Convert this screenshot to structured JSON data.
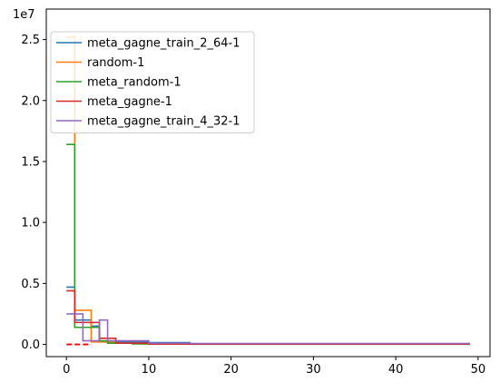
{
  "chart_data": {
    "type": "line",
    "title": "",
    "xlabel": "",
    "ylabel": "",
    "offset_label": "1e7",
    "xlim": [
      -2.45,
      51.45
    ],
    "ylim": [
      -1000000,
      27500000
    ],
    "x_ticks": [
      0,
      10,
      20,
      30,
      40,
      50
    ],
    "x_tick_labels": [
      "0",
      "10",
      "20",
      "30",
      "40",
      "50"
    ],
    "y_ticks": [
      0,
      5000000,
      10000000,
      15000000,
      20000000,
      25000000
    ],
    "y_tick_labels": [
      "0.0",
      "0.5",
      "1.0",
      "1.5",
      "2.0",
      "2.5"
    ],
    "grid": false,
    "legend_position": "top-left",
    "step": true,
    "series": [
      {
        "name": "meta_gagne_train_2_64-1",
        "color": "#1f77b4",
        "points": [
          [
            0,
            4700000
          ],
          [
            1,
            2000000
          ],
          [
            2,
            2000000
          ],
          [
            3,
            1500000
          ],
          [
            4,
            200000
          ],
          [
            5,
            200000
          ],
          [
            9,
            200000
          ],
          [
            10,
            150000
          ],
          [
            14,
            150000
          ],
          [
            15,
            20000
          ],
          [
            49,
            20000
          ]
        ]
      },
      {
        "name": "random-1",
        "color": "#ff7f0e",
        "points": [
          [
            0,
            25200000
          ],
          [
            1,
            2800000
          ],
          [
            2,
            2800000
          ],
          [
            3,
            200000
          ],
          [
            5,
            200000
          ],
          [
            6,
            100000
          ],
          [
            8,
            100000
          ],
          [
            9,
            50000
          ],
          [
            49,
            50000
          ]
        ]
      },
      {
        "name": "meta_random-1",
        "color": "#2ca02c",
        "points": [
          [
            0,
            16400000
          ],
          [
            1,
            1400000
          ],
          [
            2,
            1400000
          ],
          [
            3,
            1400000
          ],
          [
            4,
            300000
          ],
          [
            5,
            100000
          ],
          [
            7,
            100000
          ],
          [
            8,
            50000
          ],
          [
            49,
            50000
          ]
        ]
      },
      {
        "name": "meta_gagne-1",
        "color": "#d62728",
        "points": [
          [
            0,
            4400000
          ],
          [
            1,
            1800000
          ],
          [
            2,
            1800000
          ],
          [
            3,
            1800000
          ],
          [
            4,
            500000
          ],
          [
            5,
            500000
          ],
          [
            6,
            100000
          ],
          [
            9,
            100000
          ],
          [
            10,
            30000
          ],
          [
            49,
            30000
          ]
        ]
      },
      {
        "name": "meta_gagne_train_4_32-1",
        "color": "#9467bd",
        "points": [
          [
            0,
            2500000
          ],
          [
            1,
            2500000
          ],
          [
            2,
            300000
          ],
          [
            3,
            300000
          ],
          [
            4,
            2000000
          ],
          [
            5,
            300000
          ],
          [
            9,
            300000
          ],
          [
            10,
            100000
          ],
          [
            15,
            80000
          ],
          [
            49,
            80000
          ]
        ]
      }
    ],
    "reference_line": {
      "color": "#ff0000",
      "style": "dashed",
      "points": [
        [
          0,
          0
        ],
        [
          3,
          0
        ]
      ]
    }
  }
}
